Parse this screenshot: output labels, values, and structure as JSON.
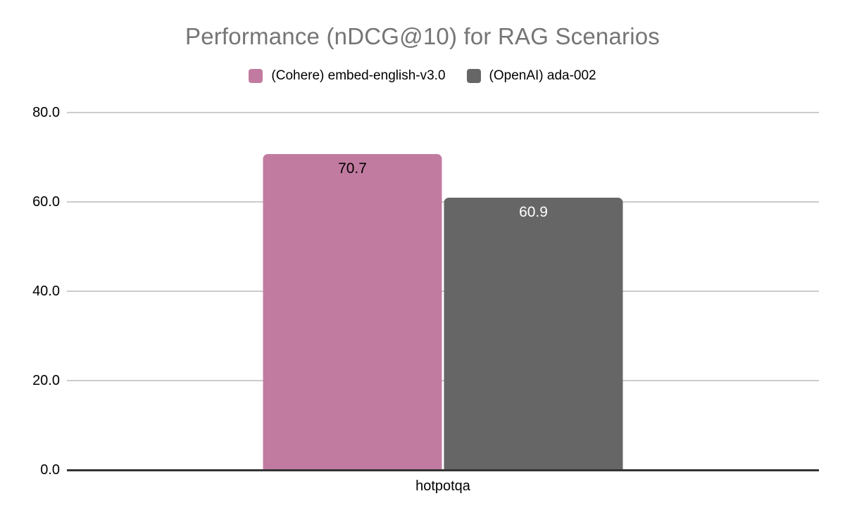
{
  "title": "Performance (nDCG@10) for RAG Scenarios",
  "colors": {
    "background": "#ffffff",
    "title_text": "#757575",
    "gridline": "#cccccc",
    "axis_baseline": "#333333",
    "tick_text": "#000000",
    "series_cohere": "#c27ba0",
    "series_openai": "#666666"
  },
  "chart_data": {
    "type": "bar",
    "title": "Performance (nDCG@10) for RAG Scenarios",
    "xlabel": "",
    "ylabel": "",
    "categories": [
      "hotpotqa"
    ],
    "series": [
      {
        "name": "(Cohere) embed-english-v3.0",
        "values": [
          70.7
        ],
        "color": "#c27ba0",
        "value_label": "70.7",
        "value_label_color": "#000000"
      },
      {
        "name": "(OpenAI) ada-002",
        "values": [
          60.9
        ],
        "color": "#666666",
        "value_label": "60.9",
        "value_label_color": "#ffffff"
      }
    ],
    "ylim": [
      0,
      80
    ],
    "yticks": [
      80.0,
      60.0,
      40.0,
      20.0,
      0.0
    ],
    "ytick_labels": [
      "80.0",
      "60.0",
      "40.0",
      "20.0",
      "0.0"
    ],
    "grid": true,
    "legend_position": "top"
  }
}
